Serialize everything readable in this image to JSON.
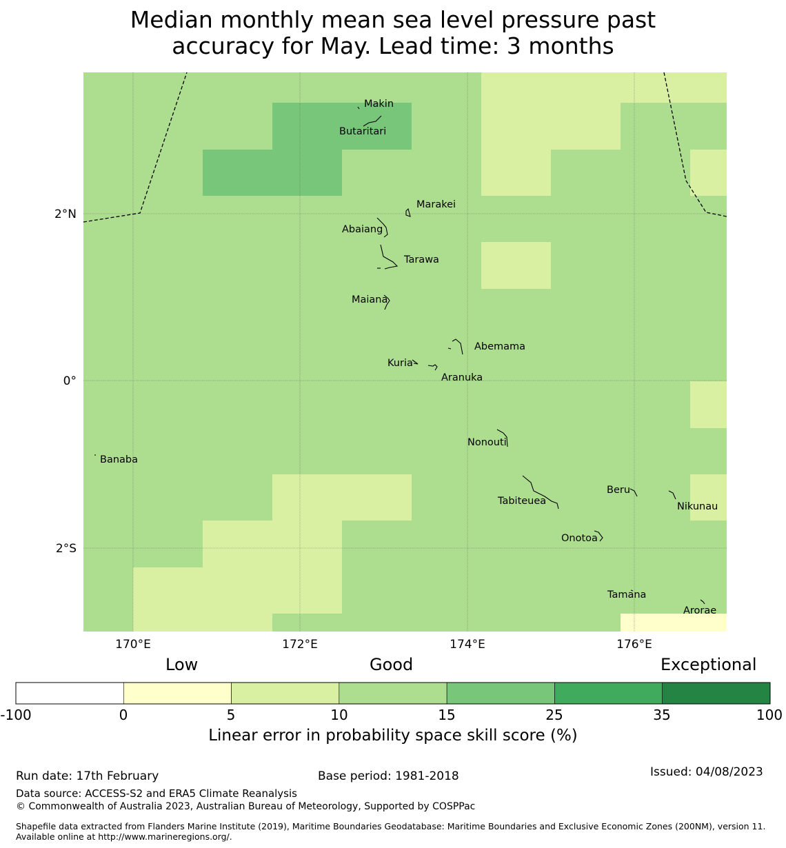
{
  "title_line1": "Median monthly mean sea level pressure past",
  "title_line2": "accuracy for May. Lead time: 3 months",
  "map": {
    "lon_labels": [
      "170°E",
      "172°E",
      "174°E",
      "176°E"
    ],
    "lat_labels": [
      "2°N",
      "0°",
      "2°S"
    ],
    "islands": [
      "Makin",
      "Butaritari",
      "Marakei",
      "Abaiang",
      "Tarawa",
      "Maiana",
      "Abemama",
      "Kuria",
      "Aranuka",
      "Banaba",
      "Nonouti",
      "Tabiteuea",
      "Beru",
      "Nikunau",
      "Onotoa",
      "Tamana",
      "Arorae"
    ]
  },
  "colorbar": {
    "categories": [
      "Low",
      "Good",
      "Exceptional"
    ],
    "ticks": [
      "-100",
      "0",
      "5",
      "10",
      "15",
      "25",
      "35",
      "100"
    ],
    "colors": [
      "#ffffff",
      "#ffffcc",
      "#d9f0a3",
      "#addd8e",
      "#78c679",
      "#41ab5d",
      "#238443"
    ],
    "caption": "Linear error in probability space skill score (%)"
  },
  "footer": {
    "run_date": "Run date: 17th February",
    "base_period": "Base period: 1981-2018",
    "issued": "Issued: 04/08/2023",
    "data_source": "Data source: ACCESS-S2 and ERA5 Climate Reanalysis",
    "copyright": "© Commonwealth of Australia 2023, Australian Bureau of Meteorology, Supported by COSPPac",
    "shapefile": "Shapefile data extracted from Flanders Marine Institute (2019), Maritime Boundaries Geodatabase: Maritime Boundaries and Exclusive Economic Zones (200NM), version 11. Available online at http://www.marineregions.org/."
  }
}
